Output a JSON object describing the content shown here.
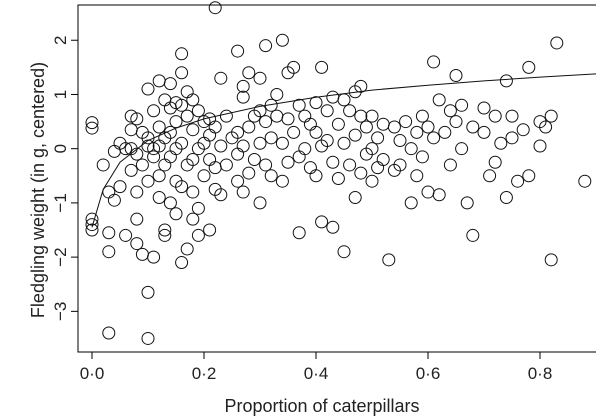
{
  "chart_data": {
    "type": "scatter",
    "xlabel": "Proportion of caterpillars",
    "ylabel": "Fledgling weight (in g, centered)",
    "xlim": [
      -0.025,
      0.9
    ],
    "ylim": [
      -3.75,
      2.65
    ],
    "x_ticks": [
      0,
      0.2,
      0.4,
      0.6,
      0.8
    ],
    "x_tick_labels": [
      "0·0",
      "0·2",
      "0·4",
      "0·6",
      "0·8"
    ],
    "y_ticks": [
      -3,
      -2,
      -1,
      0,
      1,
      2
    ],
    "y_tick_labels": [
      "−3",
      "−2",
      "−1",
      "0",
      "1",
      "2"
    ],
    "grid": false,
    "legend": "none",
    "points": [
      [
        0.0,
        0.48
      ],
      [
        0.0,
        0.38
      ],
      [
        0.0,
        -1.3
      ],
      [
        0.0,
        -1.4
      ],
      [
        0.0,
        -1.5
      ],
      [
        0.02,
        -0.3
      ],
      [
        0.03,
        -0.8
      ],
      [
        0.03,
        -1.55
      ],
      [
        0.03,
        -1.9
      ],
      [
        0.03,
        -3.4
      ],
      [
        0.04,
        -0.05
      ],
      [
        0.04,
        -0.95
      ],
      [
        0.05,
        0.1
      ],
      [
        0.05,
        -0.7
      ],
      [
        0.06,
        0.0
      ],
      [
        0.06,
        -1.6
      ],
      [
        0.07,
        0.6
      ],
      [
        0.07,
        0.35
      ],
      [
        0.07,
        0.0
      ],
      [
        0.07,
        -0.4
      ],
      [
        0.08,
        0.55
      ],
      [
        0.08,
        -0.1
      ],
      [
        0.08,
        -0.8
      ],
      [
        0.08,
        -1.3
      ],
      [
        0.08,
        -1.75
      ],
      [
        0.09,
        0.3
      ],
      [
        0.09,
        -0.3
      ],
      [
        0.09,
        -1.95
      ],
      [
        0.1,
        1.1
      ],
      [
        0.1,
        0.2
      ],
      [
        0.1,
        0.05
      ],
      [
        0.1,
        -0.6
      ],
      [
        0.1,
        -2.65
      ],
      [
        0.1,
        -3.5
      ],
      [
        0.11,
        0.7
      ],
      [
        0.11,
        0.0
      ],
      [
        0.11,
        -0.15
      ],
      [
        0.11,
        -2.0
      ],
      [
        0.12,
        1.25
      ],
      [
        0.12,
        0.4
      ],
      [
        0.12,
        0.05
      ],
      [
        0.12,
        -0.5
      ],
      [
        0.12,
        -0.9
      ],
      [
        0.13,
        0.9
      ],
      [
        0.13,
        0.2
      ],
      [
        0.13,
        -0.3
      ],
      [
        0.13,
        -1.5
      ],
      [
        0.13,
        -1.6
      ],
      [
        0.14,
        1.2
      ],
      [
        0.14,
        0.75
      ],
      [
        0.14,
        0.3
      ],
      [
        0.14,
        -0.15
      ],
      [
        0.14,
        -1.0
      ],
      [
        0.15,
        0.85
      ],
      [
        0.15,
        0.5
      ],
      [
        0.15,
        0.0
      ],
      [
        0.15,
        -0.6
      ],
      [
        0.15,
        -1.2
      ],
      [
        0.16,
        1.75
      ],
      [
        0.16,
        1.4
      ],
      [
        0.16,
        0.8
      ],
      [
        0.16,
        0.1
      ],
      [
        0.16,
        -0.7
      ],
      [
        0.16,
        -2.1
      ],
      [
        0.17,
        1.05
      ],
      [
        0.17,
        0.6
      ],
      [
        0.17,
        -0.3
      ],
      [
        0.17,
        -1.85
      ],
      [
        0.18,
        0.9
      ],
      [
        0.18,
        0.35
      ],
      [
        0.18,
        -0.2
      ],
      [
        0.18,
        -0.8
      ],
      [
        0.18,
        -1.3
      ],
      [
        0.19,
        0.7
      ],
      [
        0.19,
        0.0
      ],
      [
        0.19,
        -1.1
      ],
      [
        0.19,
        -1.6
      ],
      [
        0.2,
        0.5
      ],
      [
        0.2,
        0.1
      ],
      [
        0.2,
        -0.5
      ],
      [
        0.21,
        0.55
      ],
      [
        0.21,
        0.25
      ],
      [
        0.21,
        -0.2
      ],
      [
        0.21,
        -1.5
      ],
      [
        0.22,
        2.6
      ],
      [
        0.22,
        0.4
      ],
      [
        0.22,
        -0.35
      ],
      [
        0.22,
        -0.75
      ],
      [
        0.23,
        1.3
      ],
      [
        0.23,
        0.05
      ],
      [
        0.23,
        -0.85
      ],
      [
        0.24,
        0.6
      ],
      [
        0.24,
        -0.3
      ],
      [
        0.25,
        0.2
      ],
      [
        0.26,
        1.8
      ],
      [
        0.26,
        0.3
      ],
      [
        0.26,
        -0.1
      ],
      [
        0.26,
        -0.6
      ],
      [
        0.27,
        1.15
      ],
      [
        0.27,
        0.95
      ],
      [
        0.27,
        0.05
      ],
      [
        0.27,
        -0.8
      ],
      [
        0.28,
        1.4
      ],
      [
        0.28,
        0.4
      ],
      [
        0.28,
        -0.45
      ],
      [
        0.29,
        0.6
      ],
      [
        0.29,
        -0.2
      ],
      [
        0.3,
        1.3
      ],
      [
        0.3,
        0.7
      ],
      [
        0.3,
        0.1
      ],
      [
        0.3,
        -1.0
      ],
      [
        0.31,
        1.9
      ],
      [
        0.31,
        0.5
      ],
      [
        0.31,
        -0.3
      ],
      [
        0.32,
        0.8
      ],
      [
        0.32,
        0.2
      ],
      [
        0.32,
        -0.5
      ],
      [
        0.33,
        1.0
      ],
      [
        0.33,
        0.6
      ],
      [
        0.34,
        2.0
      ],
      [
        0.34,
        0.1
      ],
      [
        0.34,
        -0.6
      ],
      [
        0.35,
        1.4
      ],
      [
        0.35,
        0.55
      ],
      [
        0.35,
        -0.25
      ],
      [
        0.36,
        1.5
      ],
      [
        0.36,
        0.3
      ],
      [
        0.37,
        0.8
      ],
      [
        0.37,
        -1.55
      ],
      [
        0.37,
        -0.15
      ],
      [
        0.38,
        0.6
      ],
      [
        0.38,
        0.0
      ],
      [
        0.39,
        0.45
      ],
      [
        0.39,
        -0.35
      ],
      [
        0.4,
        0.85
      ],
      [
        0.4,
        0.3
      ],
      [
        0.4,
        -0.5
      ],
      [
        0.41,
        1.5
      ],
      [
        0.41,
        0.05
      ],
      [
        0.41,
        -1.35
      ],
      [
        0.42,
        0.7
      ],
      [
        0.42,
        0.15
      ],
      [
        0.43,
        0.95
      ],
      [
        0.43,
        -0.25
      ],
      [
        0.43,
        -1.45
      ],
      [
        0.44,
        0.45
      ],
      [
        0.44,
        -0.55
      ],
      [
        0.45,
        0.9
      ],
      [
        0.45,
        0.1
      ],
      [
        0.45,
        -1.9
      ],
      [
        0.46,
        0.7
      ],
      [
        0.46,
        -0.3
      ],
      [
        0.47,
        1.05
      ],
      [
        0.47,
        0.25
      ],
      [
        0.47,
        -0.9
      ],
      [
        0.48,
        1.15
      ],
      [
        0.48,
        0.6
      ],
      [
        0.48,
        -0.45
      ],
      [
        0.49,
        0.4
      ],
      [
        0.49,
        -0.1
      ],
      [
        0.5,
        0.6
      ],
      [
        0.5,
        0.0
      ],
      [
        0.5,
        -0.6
      ],
      [
        0.51,
        0.2
      ],
      [
        0.51,
        -0.35
      ],
      [
        0.52,
        0.45
      ],
      [
        0.52,
        -0.2
      ],
      [
        0.53,
        -2.05
      ],
      [
        0.54,
        0.4
      ],
      [
        0.54,
        -0.4
      ],
      [
        0.55,
        0.15
      ],
      [
        0.55,
        -0.3
      ],
      [
        0.56,
        0.5
      ],
      [
        0.57,
        0.0
      ],
      [
        0.57,
        -1.0
      ],
      [
        0.58,
        0.3
      ],
      [
        0.58,
        -0.5
      ],
      [
        0.59,
        0.6
      ],
      [
        0.59,
        -0.15
      ],
      [
        0.6,
        0.4
      ],
      [
        0.6,
        -0.8
      ],
      [
        0.61,
        1.6
      ],
      [
        0.61,
        0.2
      ],
      [
        0.62,
        0.9
      ],
      [
        0.62,
        -0.85
      ],
      [
        0.63,
        0.3
      ],
      [
        0.64,
        0.7
      ],
      [
        0.64,
        -0.3
      ],
      [
        0.65,
        1.35
      ],
      [
        0.65,
        0.5
      ],
      [
        0.66,
        0.8
      ],
      [
        0.66,
        0.0
      ],
      [
        0.67,
        -1.0
      ],
      [
        0.68,
        0.4
      ],
      [
        0.68,
        -1.6
      ],
      [
        0.7,
        0.3
      ],
      [
        0.7,
        0.75
      ],
      [
        0.71,
        -0.5
      ],
      [
        0.72,
        0.6
      ],
      [
        0.72,
        -0.25
      ],
      [
        0.73,
        0.1
      ],
      [
        0.74,
        1.25
      ],
      [
        0.74,
        -0.9
      ],
      [
        0.75,
        0.6
      ],
      [
        0.75,
        0.2
      ],
      [
        0.76,
        -0.6
      ],
      [
        0.77,
        0.35
      ],
      [
        0.78,
        1.5
      ],
      [
        0.78,
        -0.5
      ],
      [
        0.8,
        0.5
      ],
      [
        0.8,
        0.05
      ],
      [
        0.81,
        0.4
      ],
      [
        0.82,
        -2.05
      ],
      [
        0.82,
        0.6
      ],
      [
        0.83,
        1.95
      ],
      [
        0.88,
        -0.6
      ]
    ],
    "fit_curve": {
      "description": "saturating fitted curve",
      "x": [
        0.0,
        0.02,
        0.05,
        0.1,
        0.15,
        0.2,
        0.3,
        0.4,
        0.5,
        0.6,
        0.7,
        0.8,
        0.9
      ],
      "y": [
        -1.45,
        -0.75,
        -0.25,
        0.15,
        0.38,
        0.55,
        0.78,
        0.95,
        1.08,
        1.17,
        1.25,
        1.32,
        1.38
      ]
    }
  }
}
